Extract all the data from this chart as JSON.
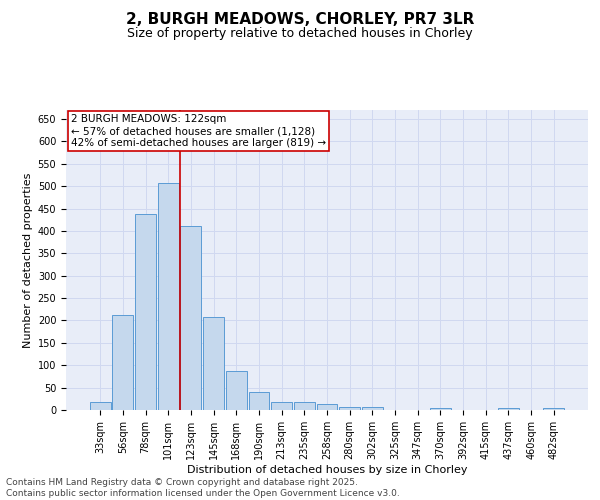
{
  "title": "2, BURGH MEADOWS, CHORLEY, PR7 3LR",
  "subtitle": "Size of property relative to detached houses in Chorley",
  "xlabel": "Distribution of detached houses by size in Chorley",
  "ylabel": "Number of detached properties",
  "bar_labels": [
    "33sqm",
    "56sqm",
    "78sqm",
    "101sqm",
    "123sqm",
    "145sqm",
    "168sqm",
    "190sqm",
    "213sqm",
    "235sqm",
    "258sqm",
    "280sqm",
    "302sqm",
    "325sqm",
    "347sqm",
    "370sqm",
    "392sqm",
    "415sqm",
    "437sqm",
    "460sqm",
    "482sqm"
  ],
  "bar_values": [
    18,
    213,
    437,
    507,
    410,
    207,
    87,
    40,
    18,
    17,
    13,
    7,
    6,
    0,
    0,
    5,
    0,
    0,
    5,
    0,
    5
  ],
  "bar_color": "#c5d8ed",
  "bar_edge_color": "#5b9bd5",
  "grid_color": "#d0d8f0",
  "background_color": "#e8edf8",
  "vline_color": "#cc0000",
  "annotation_text": "2 BURGH MEADOWS: 122sqm\n← 57% of detached houses are smaller (1,128)\n42% of semi-detached houses are larger (819) →",
  "ylim": [
    0,
    670
  ],
  "yticks": [
    0,
    50,
    100,
    150,
    200,
    250,
    300,
    350,
    400,
    450,
    500,
    550,
    600,
    650
  ],
  "footer_text": "Contains HM Land Registry data © Crown copyright and database right 2025.\nContains public sector information licensed under the Open Government Licence v3.0.",
  "title_fontsize": 11,
  "subtitle_fontsize": 9,
  "axis_label_fontsize": 8,
  "tick_fontsize": 7,
  "annotation_fontsize": 7.5,
  "footer_fontsize": 6.5
}
